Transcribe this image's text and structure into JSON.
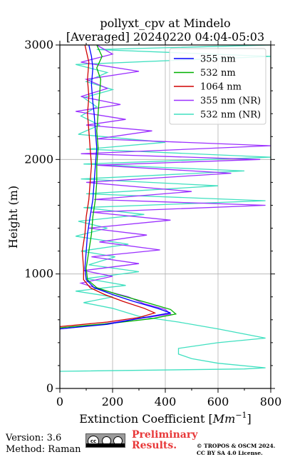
{
  "chart_data": {
    "type": "line",
    "title": "pollyxt_cpv at Mindelo",
    "subtitle": "[Averaged] 20240220 04:04-05:03",
    "xlabel": "Extinction Coefficient",
    "xlabel_unit": "Mm",
    "xlabel_unit_exp": "−1",
    "ylabel": "Height (m)",
    "xlim": [
      0,
      800
    ],
    "ylim": [
      0,
      3000
    ],
    "xticks": [
      0,
      200,
      400,
      600,
      800
    ],
    "yticks": [
      0,
      1000,
      2000,
      3000
    ],
    "grid": true,
    "legend_position": "top-right",
    "series": [
      {
        "name": "355 nm",
        "color": "#0000ff",
        "points": [
          [
            0,
            520
          ],
          [
            180,
            560
          ],
          [
            320,
            620
          ],
          [
            420,
            660
          ],
          [
            370,
            700
          ],
          [
            280,
            760
          ],
          [
            200,
            820
          ],
          [
            130,
            880
          ],
          [
            100,
            950
          ],
          [
            95,
            1050
          ],
          [
            100,
            1200
          ],
          [
            105,
            1350
          ],
          [
            115,
            1500
          ],
          [
            125,
            1650
          ],
          [
            130,
            1800
          ],
          [
            135,
            1950
          ],
          [
            140,
            2100
          ],
          [
            135,
            2250
          ],
          [
            130,
            2400
          ],
          [
            125,
            2500
          ],
          [
            120,
            2650
          ],
          [
            125,
            2800
          ],
          [
            120,
            2900
          ],
          [
            110,
            3000
          ]
        ]
      },
      {
        "name": "532 nm",
        "color": "#00b000",
        "points": [
          [
            0,
            530
          ],
          [
            200,
            570
          ],
          [
            350,
            610
          ],
          [
            440,
            650
          ],
          [
            420,
            690
          ],
          [
            330,
            750
          ],
          [
            220,
            820
          ],
          [
            140,
            880
          ],
          [
            105,
            950
          ],
          [
            100,
            1050
          ],
          [
            110,
            1200
          ],
          [
            120,
            1350
          ],
          [
            125,
            1500
          ],
          [
            135,
            1650
          ],
          [
            140,
            1800
          ],
          [
            140,
            1950
          ],
          [
            145,
            2100
          ],
          [
            140,
            2250
          ],
          [
            145,
            2400
          ],
          [
            150,
            2550
          ],
          [
            155,
            2700
          ],
          [
            140,
            2800
          ],
          [
            160,
            2900
          ],
          [
            140,
            3000
          ]
        ]
      },
      {
        "name": "1064 nm",
        "color": "#d00000",
        "points": [
          [
            0,
            540
          ],
          [
            180,
            580
          ],
          [
            300,
            620
          ],
          [
            360,
            660
          ],
          [
            320,
            700
          ],
          [
            240,
            760
          ],
          [
            170,
            820
          ],
          [
            115,
            880
          ],
          [
            90,
            950
          ],
          [
            90,
            1050
          ],
          [
            85,
            1200
          ],
          [
            95,
            1350
          ],
          [
            100,
            1500
          ],
          [
            110,
            1650
          ],
          [
            115,
            1800
          ],
          [
            120,
            1950
          ],
          [
            115,
            2100
          ],
          [
            110,
            2250
          ],
          [
            105,
            2400
          ],
          [
            110,
            2550
          ],
          [
            105,
            2700
          ],
          [
            110,
            2850
          ],
          [
            95,
            3000
          ]
        ]
      },
      {
        "name": "355 nm (NR)",
        "color": "#9b30ff",
        "points": [
          [
            0,
            520
          ],
          [
            160,
            560
          ],
          [
            300,
            610
          ],
          [
            420,
            650
          ],
          [
            400,
            690
          ],
          [
            320,
            740
          ],
          [
            260,
            800
          ],
          [
            160,
            860
          ],
          [
            80,
            920
          ],
          [
            200,
            980
          ],
          [
            90,
            1030
          ],
          [
            300,
            1090
          ],
          [
            120,
            1150
          ],
          [
            380,
            1210
          ],
          [
            150,
            1280
          ],
          [
            330,
            1340
          ],
          [
            110,
            1400
          ],
          [
            420,
            1470
          ],
          [
            120,
            1540
          ],
          [
            780,
            1600
          ],
          [
            130,
            1650
          ],
          [
            500,
            1720
          ],
          [
            100,
            1800
          ],
          [
            650,
            1880
          ],
          [
            140,
            1950
          ],
          [
            760,
            2000
          ],
          [
            80,
            2050
          ],
          [
            800,
            2120
          ],
          [
            140,
            2180
          ],
          [
            350,
            2250
          ],
          [
            100,
            2300
          ],
          [
            250,
            2350
          ],
          [
            60,
            2420
          ],
          [
            230,
            2480
          ],
          [
            80,
            2550
          ],
          [
            180,
            2620
          ],
          [
            100,
            2700
          ],
          [
            300,
            2770
          ],
          [
            80,
            2850
          ],
          [
            200,
            2920
          ],
          [
            140,
            3000
          ]
        ]
      },
      {
        "name": "532 nm (NR)",
        "color": "#40e0c0",
        "points": [
          [
            0,
            150
          ],
          [
            700,
            170
          ],
          [
            780,
            180
          ],
          [
            600,
            220
          ],
          [
            500,
            260
          ],
          [
            450,
            300
          ],
          [
            450,
            350
          ],
          [
            600,
            400
          ],
          [
            780,
            440
          ],
          [
            600,
            520
          ],
          [
            450,
            580
          ],
          [
            300,
            630
          ],
          [
            200,
            700
          ],
          [
            90,
            750
          ],
          [
            200,
            800
          ],
          [
            60,
            850
          ],
          [
            250,
            900
          ],
          [
            100,
            960
          ],
          [
            300,
            1020
          ],
          [
            110,
            1080
          ],
          [
            210,
            1150
          ],
          [
            80,
            1200
          ],
          [
            260,
            1260
          ],
          [
            60,
            1330
          ],
          [
            180,
            1400
          ],
          [
            70,
            1460
          ],
          [
            320,
            1520
          ],
          [
            90,
            1580
          ],
          [
            780,
            1640
          ],
          [
            100,
            1700
          ],
          [
            600,
            1770
          ],
          [
            80,
            1830
          ],
          [
            700,
            1900
          ],
          [
            90,
            1960
          ],
          [
            800,
            2020
          ],
          [
            100,
            2090
          ],
          [
            400,
            2150
          ],
          [
            70,
            2220
          ],
          [
            150,
            2300
          ],
          [
            80,
            2380
          ],
          [
            140,
            2460
          ],
          [
            90,
            2540
          ],
          [
            200,
            2610
          ],
          [
            100,
            2680
          ],
          [
            180,
            2760
          ],
          [
            60,
            2830
          ],
          [
            800,
            2900
          ],
          [
            140,
            2960
          ],
          [
            800,
            3000
          ]
        ]
      }
    ]
  },
  "footer": {
    "version": "Version: 3.6",
    "method": "Method: Raman",
    "license_badge": "cc",
    "preliminary_line1": "Preliminary",
    "preliminary_line2": "Results.",
    "copyright_line1": "© TROPOS & OSCM 2024.",
    "copyright_line2": "CC BY SA 4.0 License."
  }
}
